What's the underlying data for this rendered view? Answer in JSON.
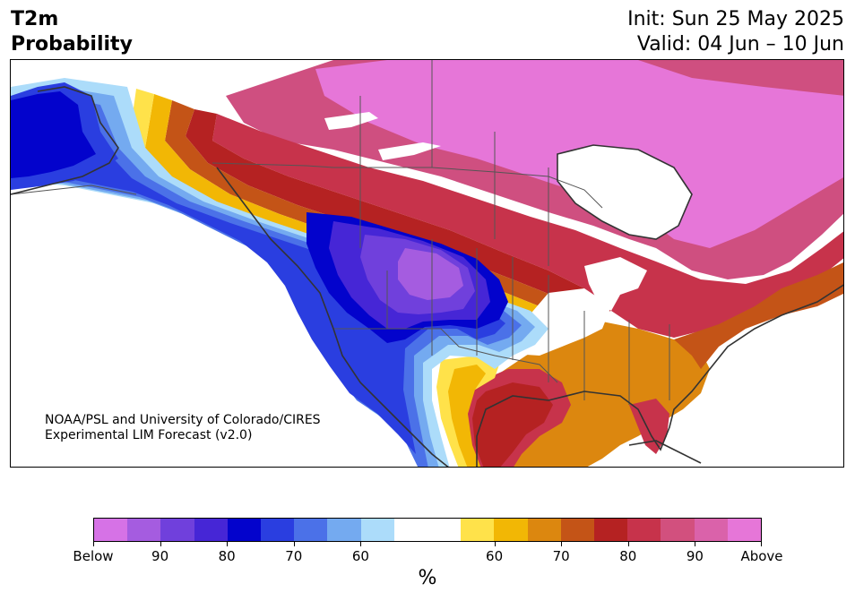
{
  "header": {
    "title_line1": "T2m",
    "title_line2": "Probability",
    "init": "Init: Sun 25 May 2025",
    "valid": "Valid: 04 Jun – 10 Jun"
  },
  "credit": {
    "line1": "NOAA/PSL and University of Colorado/CIRES",
    "line2": "Experimental LIM Forecast (v2.0)"
  },
  "colorbar": {
    "colors": [
      "#d672e6",
      "#a55ce0",
      "#7040dc",
      "#4626d6",
      "#0303cc",
      "#2a3ee0",
      "#4b71e8",
      "#74aaf0",
      "#acdcfa",
      "#ffffff",
      "#ffffff",
      "#ffe24a",
      "#f2b705",
      "#dc870f",
      "#c45417",
      "#b52222",
      "#c7334b",
      "#d2507e",
      "#da62aa",
      "#e676d8"
    ],
    "tick_labels": [
      "Below",
      "90",
      "80",
      "70",
      "60",
      "60",
      "70",
      "80",
      "90",
      "Above"
    ],
    "unit": "%"
  },
  "map": {
    "colors": {
      "ocean": "#ffffff",
      "land_outline": "#333333",
      "border": "#555555",
      "dark_pink": "#cf4f80",
      "light_pink": "#e676d8",
      "crimson": "#c7334b",
      "red": "#b52222",
      "orange_dark": "#c45417",
      "orange": "#dc870f",
      "gold": "#f2b705",
      "yellow": "#ffe24a",
      "white": "#ffffff",
      "light_blue": "#acdcfa",
      "sky": "#74aaf0",
      "mid_blue": "#4b71e8",
      "blue": "#2a3ee0",
      "deep_blue": "#0303cc",
      "indigo": "#4626d6",
      "violet": "#7040dc",
      "purple": "#a55ce0"
    }
  }
}
